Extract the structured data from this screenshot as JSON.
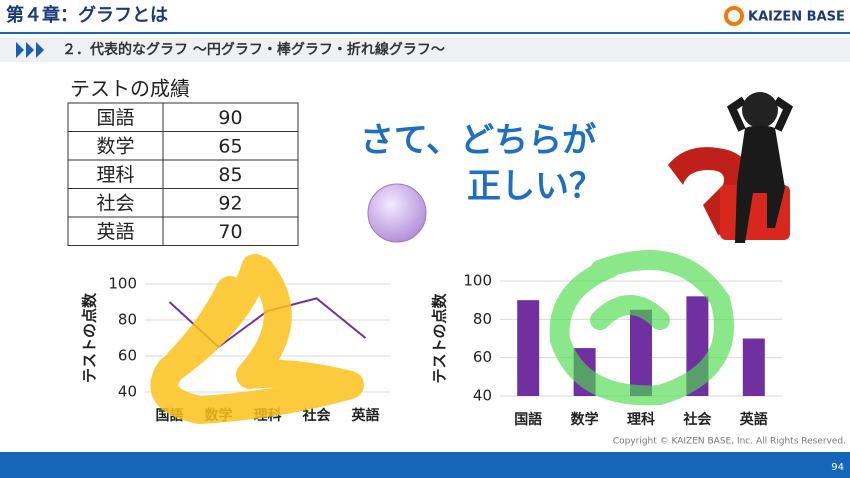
{
  "header": {
    "title": "第４章：グラフとは",
    "logo": "KAIZEN BASE",
    "subtitle": "２．代表的なグラフ ～円グラフ・棒グラフ・折れ線グラフ～"
  },
  "table": {
    "title": "テストの成績",
    "rows": [
      [
        "国語",
        90
      ],
      [
        "数学",
        65
      ],
      [
        "理科",
        85
      ],
      [
        "社会",
        92
      ],
      [
        "英語",
        70
      ]
    ]
  },
  "question": [
    "さて、どちらが",
    "正しい？"
  ],
  "chart_data": [
    {
      "type": "line",
      "categories": [
        "国語",
        "数学",
        "理科",
        "社会",
        "英語"
      ],
      "values": [
        90,
        65,
        85,
        92,
        70
      ],
      "color": "#7030a0",
      "ylabel": "テストの点数",
      "ylim": [
        40,
        100
      ],
      "yticks": [
        40,
        60,
        80,
        100
      ],
      "grid": true
    },
    {
      "type": "bar",
      "categories": [
        "国語",
        "数学",
        "理科",
        "社会",
        "英語"
      ],
      "values": [
        90,
        65,
        85,
        92,
        70
      ],
      "color": "#7030a0",
      "ylabel": "テストの点数",
      "ylim": [
        40,
        100
      ],
      "yticks": [
        40,
        60,
        80,
        100
      ],
      "grid": true
    }
  ],
  "footer": {
    "copyright": "Copyright ©  KAIZEN BASE, Inc.  All Rights Reserved.",
    "page": 94
  }
}
